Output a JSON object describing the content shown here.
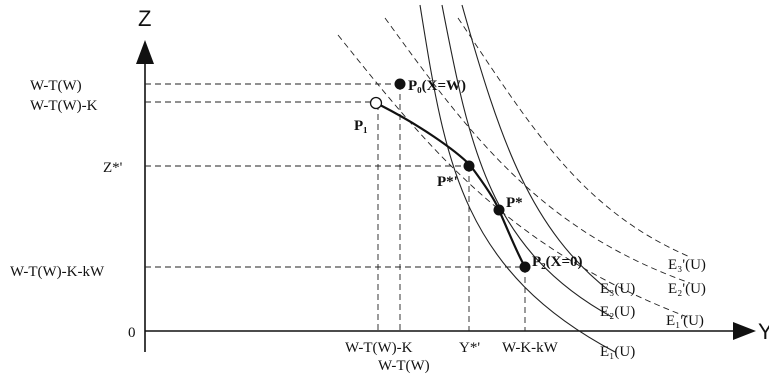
{
  "axes": {
    "y_axis_name": "Z",
    "x_axis_name": "Y",
    "origin_label": "0"
  },
  "z_ticks": {
    "w_tw": "W-T(W)",
    "w_tw_k": "W-T(W)-K",
    "z_star": "Z*'",
    "w_tw_k_kw": "W-T(W)-K-kW"
  },
  "y_ticks": {
    "w_tw_k": "W-T(W)-K",
    "w_tw": "W-T(W)",
    "y_star": "Y*'",
    "w_k_kw": "W-K-kW"
  },
  "points": {
    "p0": "P₀(X=W)",
    "p1": "P₁",
    "p_star_prime": "P*'",
    "p_star": "P*",
    "p2": "P₂(X=0)"
  },
  "curves": {
    "e1": "E₁(U)",
    "e2": "E₂(U)",
    "e3": "E₃(U)",
    "e1p": "E₁'(U)",
    "e2p": "E₂'(U)",
    "e3p": "E₃'(U)"
  }
}
